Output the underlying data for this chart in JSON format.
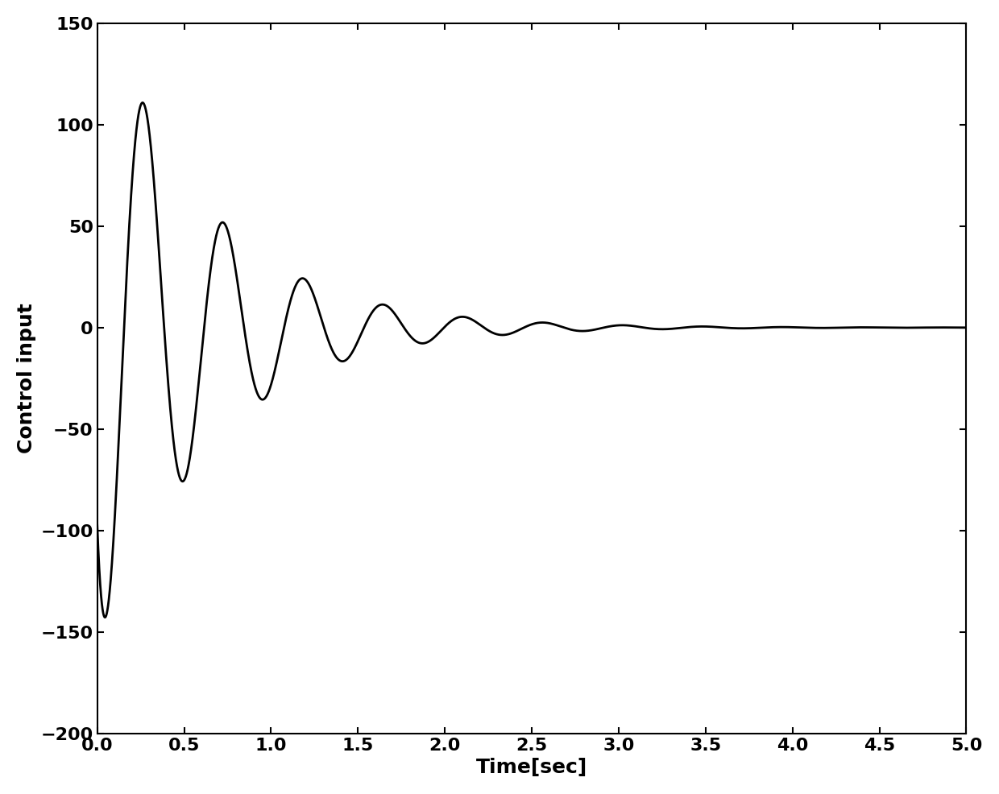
{
  "title": "",
  "xlabel": "Time[sec]",
  "ylabel": "Control input",
  "xlim": [
    0,
    5
  ],
  "ylim": [
    -200,
    150
  ],
  "xticks": [
    0,
    0.5,
    1,
    1.5,
    2,
    2.5,
    3,
    3.5,
    4,
    4.5,
    5
  ],
  "yticks": [
    -200,
    -150,
    -100,
    -50,
    0,
    50,
    100,
    150
  ],
  "line_color": "#000000",
  "line_width": 2.0,
  "background_color": "#ffffff",
  "font_size_labels": 18,
  "font_size_ticks": 16,
  "signal_params": {
    "A_osc": 298.0,
    "decay": 3.2,
    "omega": 13.66,
    "phi": -2.117,
    "B_fast": 155.0,
    "fast_decay": 12.0
  }
}
